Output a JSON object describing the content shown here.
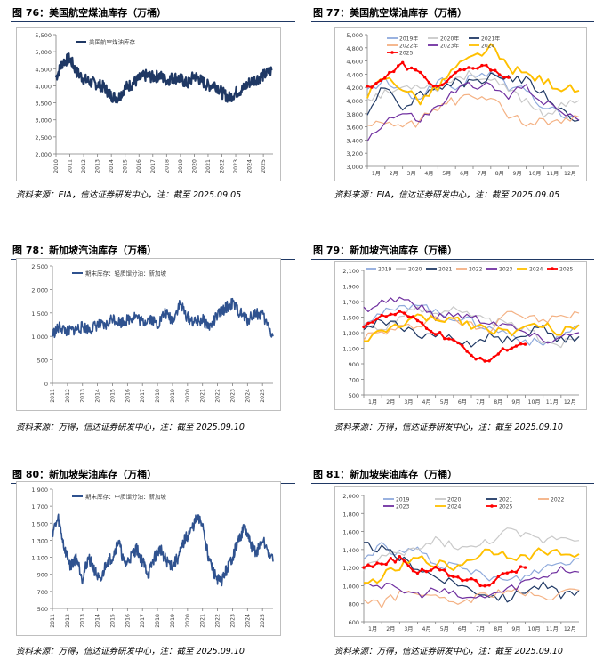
{
  "panels": [
    {
      "title": "图 76：美国航空煤油库存（万桶）",
      "source": "资料来源：EIA，信达证券研发中心，注：截至 2025.09.05"
    },
    {
      "title": "图 77：美国航空煤油库存（万桶）",
      "source": "资料来源：EIA，信达证券研发中心，注：截至 2025.09.05"
    },
    {
      "title": "图 78：新加坡汽油库存（万桶）",
      "source": "资料来源：万得，信达证券研发中心，注：截至 2025.09.10"
    },
    {
      "title": "图 79：新加坡汽油库存（万桶）",
      "source": "资料来源：万得，信达证券研发中心，注：截至 2025.09.10"
    },
    {
      "title": "图 80：新加坡柴油库存（万桶）",
      "source": "资料来源：万得，信达证券研发中心，注：截至 2025.09.10"
    },
    {
      "title": "图 81：新加坡柴油库存（万桶）",
      "source": "资料来源：万得，信达证券研发中心，注：截至 2025.09.10"
    }
  ],
  "chart_data": [
    {
      "type": "line",
      "legend": [
        "美国航空煤油库存"
      ],
      "ylim": [
        2000,
        5500
      ],
      "yticks": [
        "2,000",
        "2,500",
        "3,000",
        "3,500",
        "4,000",
        "4,500",
        "5,000",
        "5,500"
      ],
      "xticks": [
        "2010",
        "2011",
        "2012",
        "2013",
        "2014",
        "2015",
        "2016",
        "2017",
        "2018",
        "2019",
        "2020",
        "2021",
        "2022",
        "2023",
        "2024",
        "2025"
      ],
      "color": "#1f3864",
      "series": [
        {
          "x": [
            2010.0,
            2010.5,
            2011.0,
            2011.5,
            2012.0,
            2012.5,
            2013.0,
            2013.5,
            2014.0,
            2014.5,
            2015.0,
            2015.5,
            2016.0,
            2016.5,
            2017.0,
            2017.5,
            2018.0,
            2018.5,
            2019.0,
            2019.5,
            2020.0,
            2020.5,
            2021.0,
            2021.5,
            2022.0,
            2022.5,
            2023.0,
            2023.5,
            2024.0,
            2024.5,
            2025.0,
            2025.6
          ],
          "values": [
            4250,
            4700,
            4800,
            4400,
            4200,
            4100,
            4050,
            3950,
            3700,
            3650,
            3950,
            4050,
            4200,
            4300,
            4250,
            4300,
            4150,
            4250,
            4200,
            4050,
            4300,
            4150,
            4000,
            4050,
            3800,
            3650,
            3800,
            3900,
            4100,
            4200,
            4300,
            4450
          ]
        }
      ]
    },
    {
      "type": "line",
      "ylim": [
        3000,
        5000
      ],
      "yticks": [
        "3,000",
        "3,200",
        "3,400",
        "3,600",
        "3,800",
        "4,000",
        "4,200",
        "4,400",
        "4,600",
        "4,800",
        "5,000"
      ],
      "xticks": [
        "1月",
        "2月",
        "3月",
        "4月",
        "5月",
        "6月",
        "7月",
        "8月",
        "9月",
        "10月",
        "11月",
        "12月"
      ],
      "series": [
        {
          "name": "2019年",
          "color": "#8faadc",
          "values": [
            4150,
            4300,
            4100,
            4050,
            4300,
            4200,
            4350,
            4450,
            4200,
            4150,
            3900,
            3800,
            3700
          ]
        },
        {
          "name": "2020年",
          "color": "#c9c9c9",
          "values": [
            4050,
            4100,
            4200,
            4250,
            4200,
            4350,
            4400,
            4300,
            4150,
            4000,
            3800,
            3900,
            4000
          ]
        },
        {
          "name": "2021年",
          "color": "#1f3864",
          "values": [
            3850,
            4250,
            3900,
            4100,
            4200,
            4300,
            4250,
            4400,
            4350,
            4300,
            4100,
            3850,
            3700
          ]
        },
        {
          "name": "2022年",
          "color": "#f4b183",
          "values": [
            3600,
            3700,
            3550,
            3700,
            3900,
            4000,
            4050,
            4000,
            3800,
            3650,
            3700,
            3650,
            3750
          ]
        },
        {
          "name": "2023年",
          "color": "#7030a0",
          "values": [
            3400,
            3700,
            3800,
            3700,
            3900,
            4150,
            4250,
            4200,
            4050,
            4250,
            3950,
            3850,
            3700
          ]
        },
        {
          "name": "2024",
          "color": "#ffc000",
          "values": [
            4100,
            4350,
            4200,
            4000,
            4200,
            4500,
            4650,
            4800,
            4500,
            4400,
            4300,
            4200,
            4150
          ]
        },
        {
          "name": "2025",
          "color": "#ff0000",
          "marker": true,
          "values": [
            4200,
            4350,
            4550,
            4400,
            4200,
            4400,
            4500,
            4500,
            4350
          ]
        }
      ]
    },
    {
      "type": "line",
      "legend": [
        "期末库存：轻质馏分油：新加坡"
      ],
      "ylim": [
        0,
        2500
      ],
      "yticks": [
        "0",
        "500",
        "1,000",
        "1,500",
        "2,000",
        "2,500"
      ],
      "xticks": [
        "2011",
        "2012",
        "2013",
        "2014",
        "2015",
        "2016",
        "2017",
        "2018",
        "2019",
        "2020",
        "2021",
        "2022",
        "2023",
        "2024",
        "2025"
      ],
      "color": "#2f528f",
      "series": [
        {
          "x": [
            2011.0,
            2011.5,
            2012.0,
            2012.5,
            2013.0,
            2013.5,
            2014.0,
            2014.5,
            2015.0,
            2015.5,
            2016.0,
            2016.5,
            2017.0,
            2017.5,
            2018.0,
            2018.5,
            2019.0,
            2019.5,
            2020.0,
            2020.5,
            2021.0,
            2021.5,
            2022.0,
            2022.5,
            2023.0,
            2023.5,
            2024.0,
            2024.5,
            2025.0,
            2025.7
          ],
          "values": [
            1050,
            1200,
            1100,
            1150,
            1200,
            1150,
            1250,
            1200,
            1400,
            1300,
            1350,
            1450,
            1300,
            1400,
            1250,
            1500,
            1350,
            1700,
            1400,
            1300,
            1350,
            1200,
            1450,
            1600,
            1700,
            1500,
            1350,
            1500,
            1450,
            1000
          ]
        }
      ]
    },
    {
      "type": "line",
      "ylim": [
        500,
        2100
      ],
      "yticks": [
        "500",
        "700",
        "900",
        "1,100",
        "1,300",
        "1,500",
        "1,700",
        "1,900",
        "2,100"
      ],
      "xticks": [
        "1月",
        "2月",
        "3月",
        "4月",
        "5月",
        "6月",
        "7月",
        "8月",
        "9月",
        "10月",
        "11月",
        "12月"
      ],
      "series": [
        {
          "name": "2019",
          "color": "#8faadc",
          "values": [
            1450,
            1550,
            1600,
            1700,
            1550,
            1500,
            1450,
            1350,
            1300,
            1200,
            1150,
            1250,
            1400
          ]
        },
        {
          "name": "2020",
          "color": "#c9c9c9",
          "values": [
            1400,
            1350,
            1500,
            1600,
            1550,
            1650,
            1500,
            1450,
            1400,
            1350,
            1200,
            1150,
            1250
          ]
        },
        {
          "name": "2021",
          "color": "#1f3864",
          "values": [
            1350,
            1450,
            1400,
            1250,
            1300,
            1200,
            1150,
            1250,
            1200,
            1300,
            1350,
            1200,
            1250
          ]
        },
        {
          "name": "2022",
          "color": "#f4b183",
          "values": [
            1250,
            1300,
            1350,
            1400,
            1500,
            1450,
            1400,
            1350,
            1600,
            1500,
            1450,
            1500,
            1550
          ]
        },
        {
          "name": "2023",
          "color": "#7030a0",
          "values": [
            1600,
            1700,
            1750,
            1650,
            1500,
            1550,
            1500,
            1450,
            1400,
            1300,
            1200,
            1250,
            1300
          ]
        },
        {
          "name": "2024",
          "color": "#ffc000",
          "values": [
            1200,
            1300,
            1400,
            1500,
            1450,
            1500,
            1400,
            1350,
            1300,
            1350,
            1400,
            1300,
            1400
          ]
        },
        {
          "name": "2025",
          "color": "#ff0000",
          "marker": true,
          "values": [
            1400,
            1500,
            1550,
            1450,
            1300,
            1200,
            1000,
            950,
            1100,
            1150
          ]
        }
      ]
    },
    {
      "type": "line",
      "legend": [
        "期末库存：中质馏分油：新加坡"
      ],
      "ylim": [
        500,
        1900
      ],
      "yticks": [
        "500",
        "700",
        "900",
        "1,100",
        "1,300",
        "1,500",
        "1,700",
        "1,900"
      ],
      "xticks": [
        "2011",
        "2012",
        "2013",
        "2014",
        "2015",
        "2016",
        "2017",
        "2018",
        "2019",
        "2020",
        "2021",
        "2022",
        "2023",
        "2024",
        "2025"
      ],
      "color": "#2f528f",
      "series": [
        {
          "x": [
            2011.0,
            2011.4,
            2011.8,
            2012.2,
            2012.6,
            2013.0,
            2013.4,
            2013.8,
            2014.2,
            2014.6,
            2015.0,
            2015.4,
            2015.8,
            2016.2,
            2016.6,
            2017.0,
            2017.4,
            2017.8,
            2018.2,
            2018.6,
            2019.0,
            2019.4,
            2019.8,
            2020.2,
            2020.6,
            2021.0,
            2021.4,
            2021.8,
            2022.2,
            2022.6,
            2023.0,
            2023.4,
            2023.8,
            2024.2,
            2024.6,
            2025.0,
            2025.7
          ],
          "values": [
            1400,
            1550,
            1200,
            1000,
            1100,
            850,
            1100,
            950,
            800,
            1050,
            1100,
            1300,
            1000,
            1100,
            1200,
            1050,
            900,
            1100,
            1200,
            1050,
            1000,
            1100,
            1300,
            1400,
            1550,
            1500,
            1100,
            900,
            800,
            950,
            1100,
            1300,
            1450,
            1250,
            1150,
            1300,
            1050
          ]
        }
      ]
    },
    {
      "type": "line",
      "ylim": [
        600,
        2000
      ],
      "yticks": [
        "600",
        "800",
        "1,000",
        "1,200",
        "1,400",
        "1,600",
        "1,800",
        "2,000"
      ],
      "xticks": [
        "1月",
        "2月",
        "3月",
        "4月",
        "5月",
        "6月",
        "7月",
        "8月",
        "9月",
        "10月",
        "11月",
        "12月"
      ],
      "series": [
        {
          "name": "2019",
          "color": "#8faadc",
          "values": [
            1300,
            1450,
            1350,
            1400,
            1250,
            1200,
            1150,
            1100,
            1050,
            1100,
            1200,
            1250,
            1300
          ]
        },
        {
          "name": "2020",
          "color": "#c9c9c9",
          "values": [
            1200,
            1300,
            1350,
            1400,
            1500,
            1450,
            1400,
            1500,
            1600,
            1550,
            1500,
            1550,
            1500
          ]
        },
        {
          "name": "2021",
          "color": "#1f3864",
          "values": [
            1450,
            1400,
            1300,
            1200,
            1100,
            1050,
            950,
            900,
            850,
            950,
            1000,
            900,
            950
          ]
        },
        {
          "name": "2022",
          "color": "#f4b183",
          "values": [
            850,
            800,
            900,
            950,
            850,
            800,
            850,
            900,
            950,
            900,
            850,
            900,
            950
          ]
        },
        {
          "name": "2023",
          "color": "#7030a0",
          "values": [
            1050,
            1000,
            950,
            900,
            950,
            900,
            850,
            900,
            950,
            1050,
            1100,
            1200,
            1150
          ]
        },
        {
          "name": "2024",
          "color": "#ffc000",
          "values": [
            1000,
            1100,
            1200,
            1300,
            1250,
            1200,
            1300,
            1400,
            1350,
            1300,
            1400,
            1350,
            1350
          ]
        },
        {
          "name": "2025",
          "color": "#ff0000",
          "marker": true,
          "values": [
            1200,
            1250,
            1300,
            1150,
            1200,
            1100,
            1050,
            1000,
            1150,
            1200
          ]
        }
      ]
    }
  ]
}
